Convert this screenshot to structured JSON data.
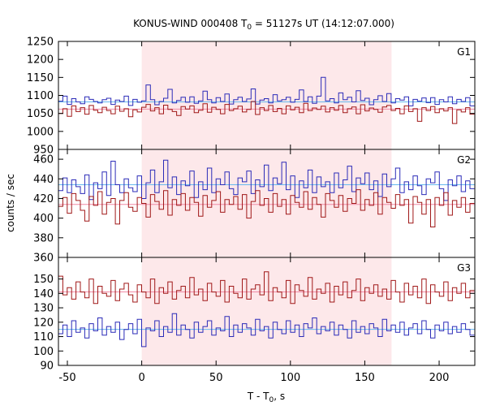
{
  "chart_data": {
    "type": "line",
    "title": "KONUS-WIND 000408 T",
    "title_sub": "0",
    "title_rest": " = 51127s UT (14:12:07.000)",
    "xlabel": "T - T",
    "xlabel_sub": "0",
    "xlabel_rest": ", s",
    "ylabel": "counts / sec",
    "xlim": [
      -56,
      224
    ],
    "xticks": [
      -50,
      0,
      50,
      100,
      150,
      200
    ],
    "highlight": {
      "x0": 0,
      "x1": 168,
      "color": "#fde8ea"
    },
    "grid": false,
    "colors": {
      "upper": "#2b2bb8",
      "lower": "#a01818",
      "upper_mean": "#66b8ee",
      "lower_mean": "#f08aa6"
    },
    "panels": [
      {
        "name": "G1",
        "ylim": [
          950,
          1250
        ],
        "yticks": [
          950,
          1000,
          1050,
          1100,
          1150,
          1200,
          1250
        ],
        "series": [
          {
            "role": "upper",
            "mean": 1082,
            "x0": -56,
            "dx": 2.944,
            "values": [
              1084,
              1098,
              1075,
              1091,
              1082,
              1077,
              1096,
              1089,
              1083,
              1079,
              1088,
              1092,
              1075,
              1087,
              1083,
              1098,
              1072,
              1089,
              1081,
              1085,
              1129,
              1088,
              1074,
              1083,
              1092,
              1117,
              1079,
              1086,
              1095,
              1081,
              1096,
              1078,
              1085,
              1112,
              1088,
              1079,
              1094,
              1083,
              1104,
              1076,
              1088,
              1095,
              1083,
              1090,
              1118,
              1076,
              1087,
              1091,
              1079,
              1102,
              1085,
              1088,
              1095,
              1081,
              1089,
              1115,
              1083,
              1096,
              1078,
              1098,
              1150,
              1085,
              1091,
              1079,
              1107,
              1088,
              1095,
              1082,
              1113,
              1086,
              1092,
              1074,
              1088,
              1099,
              1083,
              1105,
              1079,
              1091,
              1087,
              1096,
              1071,
              1089,
              1084,
              1093,
              1080,
              1094,
              1075,
              1088,
              1082,
              1096,
              1077,
              1089,
              1083,
              1094,
              1071
            ]
          },
          {
            "role": "lower",
            "mean": 1062,
            "x0": -56,
            "dx": 2.944,
            "values": [
              1050,
              1063,
              1042,
              1071,
              1055,
              1066,
              1048,
              1072,
              1059,
              1052,
              1067,
              1058,
              1049,
              1070,
              1056,
              1063,
              1041,
              1060,
              1054,
              1067,
              1075,
              1057,
              1066,
              1049,
              1073,
              1061,
              1055,
              1044,
              1069,
              1062,
              1071,
              1052,
              1059,
              1077,
              1053,
              1067,
              1061,
              1049,
              1075,
              1058,
              1063,
              1070,
              1054,
              1061,
              1083,
              1047,
              1066,
              1058,
              1072,
              1055,
              1064,
              1049,
              1071,
              1060,
              1067,
              1052,
              1078,
              1058,
              1065,
              1061,
              1070,
              1054,
              1066,
              1059,
              1072,
              1052,
              1063,
              1068,
              1049,
              1074,
              1057,
              1065,
              1061,
              1053,
              1068,
              1072,
              1058,
              1064,
              1049,
              1071,
              1055,
              1063,
              1028,
              1066,
              1058,
              1069,
              1052,
              1063,
              1057,
              1066,
              1022,
              1060,
              1054,
              1066,
              1048
            ]
          }
        ]
      },
      {
        "name": "G2",
        "ylim": [
          360,
          470
        ],
        "yticks": [
          360,
          380,
          400,
          420,
          440,
          460
        ],
        "series": [
          {
            "role": "upper",
            "mean": 434,
            "x0": -56,
            "dx": 2.944,
            "values": [
              428,
              441,
              426,
              439,
              432,
              425,
              444,
              419,
              436,
              430,
              447,
              423,
              458,
              434,
              426,
              440,
              431,
              427,
              443,
              420,
              436,
              449,
              426,
              437,
              459,
              431,
              442,
              424,
              438,
              433,
              448,
              421,
              437,
              429,
              451,
              426,
              440,
              434,
              447,
              430,
              424,
              441,
              437,
              448,
              425,
              439,
              432,
              454,
              428,
              441,
              435,
              457,
              429,
              443,
              421,
              438,
              431,
              449,
              426,
              442,
              432,
              437,
              426,
              446,
              431,
              439,
              453,
              427,
              441,
              435,
              446,
              429,
              438,
              422,
              445,
              432,
              440,
              451,
              426,
              437,
              429,
              443,
              433,
              424,
              440,
              436,
              447,
              430,
              418,
              439,
              433,
              443,
              427,
              438,
              430
            ]
          },
          {
            "role": "lower",
            "mean": 414,
            "x0": -56,
            "dx": 2.944,
            "values": [
              412,
              421,
              405,
              425,
              418,
              408,
              397,
              422,
              413,
              427,
              404,
              416,
              420,
              394,
              418,
              426,
              411,
              407,
              421,
              415,
              401,
              424,
              417,
              409,
              428,
              403,
              419,
              413,
              425,
              408,
              421,
              416,
              402,
              423,
              411,
              418,
              427,
              406,
              419,
              414,
              422,
              409,
              424,
              400,
              417,
              428,
              413,
              420,
              406,
              425,
              412,
              419,
              404,
              423,
              416,
              411,
              427,
              409,
              421,
              414,
              401,
              425,
              418,
              411,
              423,
              407,
              420,
              415,
              429,
              408,
              419,
              413,
              426,
              404,
              421,
              416,
              410,
              424,
              413,
              419,
              395,
              422,
              416,
              404,
              419,
              391,
              421,
              413,
              426,
              403,
              418,
              411,
              421,
              406,
              415
            ]
          }
        ]
      },
      {
        "name": "G3",
        "ylim": [
          90,
          165
        ],
        "yticks": [
          90,
          100,
          110,
          120,
          130,
          140,
          150
        ],
        "series": [
          {
            "role": "upper",
            "mean": 115,
            "x0": -56,
            "dx": 2.944,
            "values": [
              112,
              118,
              110,
              121,
              113,
              116,
              109,
              119,
              114,
              123,
              111,
              117,
              113,
              120,
              108,
              115,
              119,
              112,
              122,
              103,
              116,
              114,
              121,
              110,
              117,
              113,
              126,
              111,
              118,
              115,
              109,
              120,
              113,
              117,
              121,
              111,
              116,
              114,
              124,
              110,
              118,
              113,
              119,
              116,
              111,
              122,
              114,
              117,
              109,
              120,
              115,
              112,
              121,
              113,
              118,
              110,
              119,
              116,
              123,
              112,
              117,
              114,
              120,
              111,
              118,
              115,
              109,
              121,
              113,
              117,
              112,
              119,
              116,
              110,
              122,
              114,
              118,
              113,
              120,
              111,
              116,
              119,
              112,
              121,
              115,
              109,
              118,
              114,
              120,
              112,
              117,
              113,
              119,
              115,
              111
            ]
          },
          {
            "role": "lower",
            "mean": 141,
            "x0": -56,
            "dx": 2.944,
            "values": [
              152,
              139,
              144,
              136,
              148,
              141,
              137,
              150,
              133,
              145,
              140,
              138,
              149,
              135,
              143,
              147,
              139,
              134,
              146,
              141,
              137,
              150,
              133,
              144,
              140,
              148,
              136,
              142,
              145,
              137,
              151,
              139,
              143,
              135,
              147,
              141,
              138,
              149,
              134,
              145,
              140,
              137,
              150,
              136,
              143,
              146,
              139,
              155,
              135,
              144,
              141,
              137,
              149,
              133,
              146,
              142,
              138,
              151,
              136,
              143,
              140,
              147,
              134,
              145,
              139,
              148,
              137,
              142,
              150,
              135,
              144,
              140,
              146,
              138,
              143,
              136,
              149,
              141,
              134,
              147,
              139,
              145,
              137,
              150,
              133,
              146,
              141,
              138,
              148,
              135,
              144,
              140,
              147,
              137,
              142
            ]
          }
        ]
      }
    ]
  }
}
